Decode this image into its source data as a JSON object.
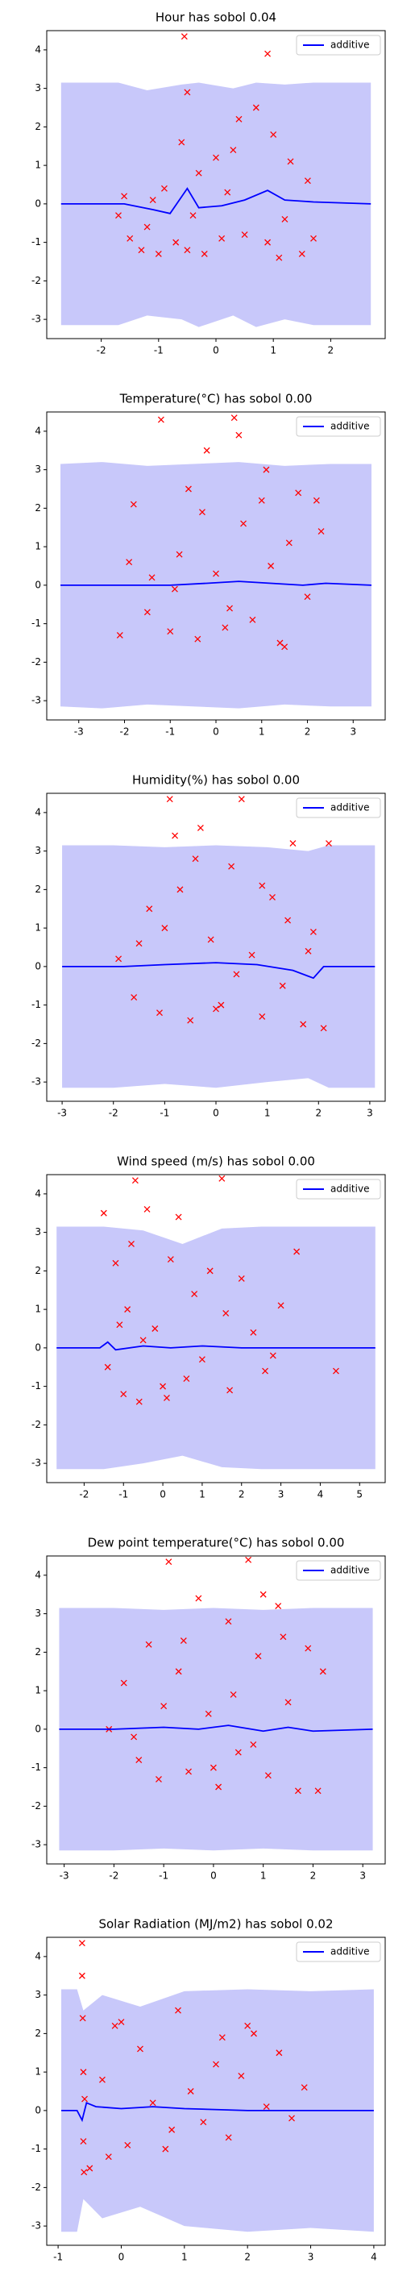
{
  "chart_data": [
    {
      "type": "scatter",
      "title": "Hour has sobol 0.04",
      "xlim": [
        -2.95,
        2.95
      ],
      "xticks": [
        -2,
        -1,
        0,
        1,
        2
      ],
      "ylim": [
        -3.5,
        4.5
      ],
      "yticks": [
        -3,
        -2,
        -1,
        0,
        1,
        2,
        3,
        4
      ],
      "band": {
        "color": "#c8c8fa",
        "x": [
          -2.7,
          -1.7,
          -1.2,
          -0.6,
          -0.3,
          0.3,
          0.7,
          1.2,
          1.7,
          2.7
        ],
        "upper": [
          3.15,
          3.15,
          2.95,
          3.1,
          3.15,
          3.0,
          3.15,
          3.1,
          3.15,
          3.15
        ],
        "lower": [
          -3.15,
          -3.15,
          -2.9,
          -3.0,
          -3.2,
          -2.9,
          -3.2,
          -3.0,
          -3.15,
          -3.15
        ]
      },
      "series": [
        {
          "name": "additive",
          "color": "#0000ff",
          "x": [
            -2.7,
            -1.6,
            -1.1,
            -0.8,
            -0.5,
            -0.3,
            0.1,
            0.5,
            0.9,
            1.2,
            1.7,
            2.7
          ],
          "values": [
            0,
            0,
            -0.15,
            -0.25,
            0.4,
            -0.1,
            -0.05,
            0.1,
            0.35,
            0.1,
            0.05,
            0
          ]
        }
      ],
      "points": {
        "color": "#ff0000",
        "x": [
          -1.7,
          -1.6,
          -1.5,
          -1.3,
          -1.2,
          -1.0,
          -0.9,
          -0.7,
          -0.55,
          -0.5,
          -0.5,
          -0.4,
          -0.3,
          -0.2,
          0.0,
          0.1,
          0.3,
          0.4,
          0.5,
          0.7,
          0.9,
          0.9,
          1.0,
          1.2,
          1.3,
          1.5,
          1.6,
          1.7,
          -1.1,
          0.2,
          -0.6,
          1.1
        ],
        "y": [
          -0.3,
          0.2,
          -0.9,
          -1.2,
          -0.6,
          -1.3,
          0.4,
          -1.0,
          4.35,
          2.9,
          -1.2,
          -0.3,
          0.8,
          -1.3,
          1.2,
          -0.9,
          1.4,
          2.2,
          -0.8,
          2.5,
          3.9,
          -1.0,
          1.8,
          -0.4,
          1.1,
          -1.3,
          0.6,
          -0.9,
          0.1,
          0.3,
          1.6,
          -1.4
        ]
      },
      "legend": "upper right"
    },
    {
      "type": "scatter",
      "title": "Temperature(°C) has sobol 0.00",
      "xlim": [
        -3.7,
        3.7
      ],
      "xticks": [
        -3,
        -2,
        -1,
        0,
        1,
        2,
        3
      ],
      "ylim": [
        -3.5,
        4.5
      ],
      "yticks": [
        -3,
        -2,
        -1,
        0,
        1,
        2,
        3,
        4
      ],
      "band": {
        "color": "#c8c8fa",
        "x": [
          -3.4,
          -2.5,
          -1.5,
          -0.5,
          0.5,
          1.5,
          2.5,
          3.4
        ],
        "upper": [
          3.15,
          3.2,
          3.1,
          3.15,
          3.2,
          3.1,
          3.15,
          3.15
        ],
        "lower": [
          -3.15,
          -3.2,
          -3.1,
          -3.15,
          -3.2,
          -3.1,
          -3.15,
          -3.15
        ]
      },
      "series": [
        {
          "name": "additive",
          "color": "#0000ff",
          "x": [
            -3.4,
            -2.2,
            -1.0,
            -0.2,
            0.5,
            1.2,
            1.9,
            2.4,
            3.4
          ],
          "values": [
            0,
            0,
            0,
            0.05,
            0.1,
            0.05,
            0,
            0.05,
            0
          ]
        }
      ],
      "points": {
        "color": "#ff0000",
        "x": [
          -2.1,
          -1.8,
          -1.5,
          -1.2,
          -1.0,
          -0.8,
          -0.6,
          -0.4,
          -0.2,
          0.0,
          0.2,
          0.4,
          0.6,
          0.8,
          1.0,
          1.2,
          1.4,
          1.6,
          1.8,
          2.0,
          2.2,
          -1.9,
          -0.9,
          0.5,
          1.1,
          0.3,
          1.5,
          -0.3,
          2.3,
          -1.4
        ],
        "y": [
          -1.3,
          2.1,
          -0.7,
          4.3,
          -1.2,
          0.8,
          2.5,
          -1.4,
          3.5,
          0.3,
          -1.1,
          4.35,
          1.6,
          -0.9,
          2.2,
          0.5,
          -1.5,
          1.1,
          2.4,
          -0.3,
          2.2,
          0.6,
          -0.1,
          3.9,
          3.0,
          -0.6,
          -1.6,
          1.9,
          1.4,
          0.2
        ]
      },
      "legend": "upper right"
    },
    {
      "type": "scatter",
      "title": "Humidity(%) has sobol 0.00",
      "xlim": [
        -3.3,
        3.3
      ],
      "xticks": [
        -3,
        -2,
        -1,
        0,
        1,
        2,
        3
      ],
      "ylim": [
        -3.5,
        4.5
      ],
      "yticks": [
        -3,
        -2,
        -1,
        0,
        1,
        2,
        3,
        4
      ],
      "band": {
        "color": "#c8c8fa",
        "x": [
          -3.0,
          -2.0,
          -1.0,
          0.0,
          1.0,
          1.8,
          2.2,
          3.1
        ],
        "upper": [
          3.15,
          3.15,
          3.1,
          3.15,
          3.1,
          3.0,
          3.15,
          3.15
        ],
        "lower": [
          -3.15,
          -3.15,
          -3.05,
          -3.15,
          -3.0,
          -2.9,
          -3.15,
          -3.15
        ]
      },
      "series": [
        {
          "name": "additive",
          "color": "#0000ff",
          "x": [
            -3.0,
            -1.8,
            -1.0,
            0.0,
            0.8,
            1.5,
            1.9,
            2.1,
            3.1
          ],
          "values": [
            0,
            0,
            0.05,
            0.1,
            0.05,
            -0.1,
            -0.3,
            0,
            0
          ]
        }
      ],
      "points": {
        "color": "#ff0000",
        "x": [
          -1.9,
          -1.6,
          -1.3,
          -1.1,
          -0.9,
          -0.7,
          -0.5,
          -0.3,
          -0.1,
          0.1,
          0.3,
          0.5,
          0.7,
          0.9,
          1.1,
          1.3,
          1.5,
          1.7,
          1.9,
          2.1,
          -0.8,
          -1.0,
          1.4,
          0.4,
          -0.4,
          0.9,
          2.2,
          -1.5,
          0.0,
          1.8
        ],
        "y": [
          0.2,
          -0.8,
          1.5,
          -1.2,
          4.35,
          2.0,
          -1.4,
          3.6,
          0.7,
          -1.0,
          2.6,
          4.35,
          0.3,
          -1.3,
          1.8,
          -0.5,
          3.2,
          -1.5,
          0.9,
          -1.6,
          3.4,
          1.0,
          1.2,
          -0.2,
          2.8,
          2.1,
          3.2,
          0.6,
          -1.1,
          0.4
        ]
      },
      "legend": "upper right"
    },
    {
      "type": "scatter",
      "title": "Wind speed (m/s) has sobol 0.00",
      "xlim": [
        -2.95,
        5.65
      ],
      "xticks": [
        -2,
        -1,
        0,
        1,
        2,
        3,
        4,
        5
      ],
      "ylim": [
        -3.5,
        4.5
      ],
      "yticks": [
        -3,
        -2,
        -1,
        0,
        1,
        2,
        3,
        4
      ],
      "band": {
        "color": "#c8c8fa",
        "x": [
          -2.7,
          -1.5,
          -0.5,
          0.5,
          1.5,
          2.5,
          3.5,
          4.5,
          5.4
        ],
        "upper": [
          3.15,
          3.15,
          3.05,
          2.7,
          3.1,
          3.15,
          3.15,
          3.15,
          3.15
        ],
        "lower": [
          -3.15,
          -3.15,
          -3.0,
          -2.8,
          -3.1,
          -3.15,
          -3.15,
          -3.15,
          -3.15
        ]
      },
      "series": [
        {
          "name": "additive",
          "color": "#0000ff",
          "x": [
            -2.7,
            -1.6,
            -1.4,
            -1.2,
            -0.5,
            0.2,
            1.0,
            2.0,
            5.4
          ],
          "values": [
            0,
            0,
            0.15,
            -0.05,
            0.05,
            0,
            0.05,
            0,
            0
          ]
        }
      ],
      "points": {
        "color": "#ff0000",
        "x": [
          -1.5,
          -1.4,
          -1.2,
          -1.0,
          -0.9,
          -0.7,
          -0.6,
          -0.4,
          -0.2,
          0.0,
          0.2,
          0.4,
          0.6,
          0.8,
          1.0,
          1.2,
          1.5,
          1.7,
          2.0,
          2.3,
          2.6,
          3.0,
          3.4,
          4.4,
          -0.5,
          0.1,
          -1.1,
          1.6,
          2.8,
          -0.8
        ],
        "y": [
          3.5,
          -0.5,
          2.2,
          -1.2,
          1.0,
          4.35,
          -1.4,
          3.6,
          0.5,
          -1.0,
          2.3,
          3.4,
          -0.8,
          1.4,
          -0.3,
          2.0,
          4.4,
          -1.1,
          1.8,
          0.4,
          -0.6,
          1.1,
          2.5,
          -0.6,
          0.2,
          -1.3,
          0.6,
          0.9,
          -0.2,
          2.7
        ]
      },
      "legend": "upper right"
    },
    {
      "type": "scatter",
      "title": "Dew point temperature(°C) has sobol 0.00",
      "xlim": [
        -3.35,
        3.45
      ],
      "xticks": [
        -3,
        -2,
        -1,
        0,
        1,
        2,
        3
      ],
      "ylim": [
        -3.5,
        4.5
      ],
      "yticks": [
        -3,
        -2,
        -1,
        0,
        1,
        2,
        3,
        4
      ],
      "band": {
        "color": "#c8c8fa",
        "x": [
          -3.1,
          -2.0,
          -1.0,
          0.0,
          1.0,
          2.0,
          3.2
        ],
        "upper": [
          3.15,
          3.15,
          3.1,
          3.15,
          3.1,
          3.15,
          3.15
        ],
        "lower": [
          -3.15,
          -3.15,
          -3.1,
          -3.15,
          -3.1,
          -3.15,
          -3.15
        ]
      },
      "series": [
        {
          "name": "additive",
          "color": "#0000ff",
          "x": [
            -3.1,
            -2.0,
            -1.0,
            -0.3,
            0.3,
            1.0,
            1.5,
            2.0,
            3.2
          ],
          "values": [
            0,
            0,
            0.05,
            0,
            0.1,
            -0.05,
            0.05,
            -0.05,
            0
          ]
        }
      ],
      "points": {
        "color": "#ff0000",
        "x": [
          -2.1,
          -1.8,
          -1.5,
          -1.3,
          -1.1,
          -0.9,
          -0.7,
          -0.5,
          -0.3,
          -0.1,
          0.1,
          0.3,
          0.5,
          0.7,
          0.9,
          1.1,
          1.3,
          1.5,
          1.7,
          1.9,
          2.1,
          2.2,
          -1.0,
          0.8,
          -0.6,
          1.4,
          0.0,
          -1.6,
          1.0,
          0.4
        ],
        "y": [
          0.0,
          1.2,
          -0.8,
          2.2,
          -1.3,
          4.35,
          1.5,
          -1.1,
          3.4,
          0.4,
          -1.5,
          2.8,
          -0.6,
          4.4,
          1.9,
          -1.2,
          3.2,
          0.7,
          -1.6,
          2.1,
          -1.6,
          1.5,
          0.6,
          -0.4,
          2.3,
          2.4,
          -1.0,
          -0.2,
          3.5,
          0.9
        ]
      },
      "legend": "upper right"
    },
    {
      "type": "scatter",
      "title": "Solar Radiation (MJ/m2) has sobol 0.02",
      "xlim": [
        -1.18,
        4.18
      ],
      "xticks": [
        -1,
        0,
        1,
        2,
        3,
        4
      ],
      "ylim": [
        -3.5,
        4.5
      ],
      "yticks": [
        -3,
        -2,
        -1,
        0,
        1,
        2,
        3,
        4
      ],
      "band": {
        "color": "#c8c8fa",
        "x": [
          -0.95,
          -0.7,
          -0.6,
          -0.3,
          0.3,
          1.0,
          2.0,
          3.0,
          4.0
        ],
        "upper": [
          3.15,
          3.15,
          2.6,
          3.0,
          2.7,
          3.1,
          3.15,
          3.1,
          3.15
        ],
        "lower": [
          -3.15,
          -3.15,
          -2.3,
          -2.8,
          -2.5,
          -3.0,
          -3.15,
          -3.05,
          -3.15
        ]
      },
      "series": [
        {
          "name": "additive",
          "color": "#0000ff",
          "x": [
            -0.95,
            -0.7,
            -0.62,
            -0.55,
            -0.4,
            0.0,
            0.5,
            1.0,
            2.0,
            3.0,
            4.0
          ],
          "values": [
            0,
            0,
            -0.25,
            0.2,
            0.1,
            0.05,
            0.1,
            0.05,
            0.0,
            0.0,
            0
          ]
        }
      ],
      "points": {
        "color": "#ff0000",
        "x": [
          -0.62,
          -0.62,
          -0.61,
          -0.6,
          -0.6,
          -0.59,
          -0.58,
          -0.5,
          -0.3,
          -0.1,
          0.1,
          0.3,
          0.5,
          0.7,
          0.9,
          1.1,
          1.3,
          1.5,
          1.7,
          1.9,
          2.1,
          2.3,
          2.5,
          2.7,
          2.9,
          0.0,
          0.8,
          1.6,
          -0.2,
          2.0
        ],
        "y": [
          4.35,
          3.5,
          2.4,
          1.0,
          -0.8,
          -1.6,
          0.3,
          -1.5,
          0.8,
          2.2,
          -0.9,
          1.6,
          0.2,
          -1.0,
          2.6,
          0.5,
          -0.3,
          1.2,
          -0.7,
          0.9,
          2.0,
          0.1,
          1.5,
          -0.2,
          0.6,
          2.3,
          -0.5,
          1.9,
          -1.2,
          2.2
        ]
      },
      "legend": "upper right"
    }
  ]
}
